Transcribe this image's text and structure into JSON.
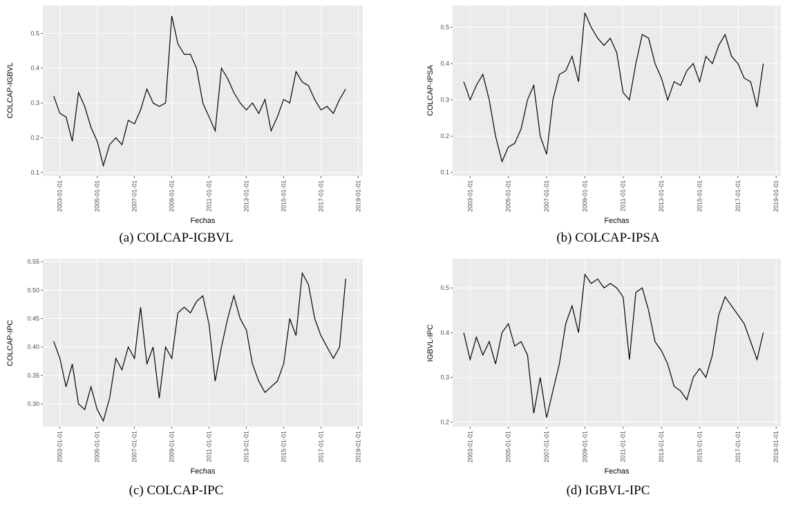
{
  "chart_data": [
    {
      "type": "line",
      "ylabel": "COLCAP-IGBVL",
      "xlabel": "Fechas",
      "caption": "(a) COLCAP-IGBVL",
      "color": "#000000",
      "grid": true,
      "x": [
        "2002-09-01",
        "2003-01-01",
        "2003-05-01",
        "2003-09-01",
        "2004-01-01",
        "2004-05-01",
        "2004-09-01",
        "2005-01-01",
        "2005-05-01",
        "2005-09-01",
        "2006-01-01",
        "2006-05-01",
        "2006-09-01",
        "2007-01-01",
        "2007-05-01",
        "2007-09-01",
        "2008-01-01",
        "2008-05-01",
        "2008-09-01",
        "2009-01-01",
        "2009-05-01",
        "2009-09-01",
        "2010-01-01",
        "2010-05-01",
        "2010-09-01",
        "2011-01-01",
        "2011-05-01",
        "2011-09-01",
        "2012-01-01",
        "2012-05-01",
        "2012-09-01",
        "2013-01-01",
        "2013-05-01",
        "2013-09-01",
        "2014-01-01",
        "2014-05-01",
        "2014-09-01",
        "2015-01-01",
        "2015-05-01",
        "2015-09-01",
        "2016-01-01",
        "2016-05-01",
        "2016-09-01",
        "2017-01-01",
        "2017-05-01",
        "2017-09-01",
        "2018-01-01",
        "2018-05-01"
      ],
      "values": [
        0.32,
        0.27,
        0.26,
        0.19,
        0.33,
        0.29,
        0.23,
        0.19,
        0.12,
        0.18,
        0.2,
        0.18,
        0.25,
        0.24,
        0.28,
        0.34,
        0.3,
        0.29,
        0.3,
        0.55,
        0.47,
        0.44,
        0.44,
        0.4,
        0.3,
        0.26,
        0.22,
        0.4,
        0.37,
        0.33,
        0.3,
        0.28,
        0.3,
        0.27,
        0.31,
        0.22,
        0.26,
        0.31,
        0.3,
        0.39,
        0.36,
        0.35,
        0.31,
        0.28,
        0.29,
        0.27,
        0.31,
        0.34
      ],
      "xlim": [
        "2002-02-01",
        "2019-04-01"
      ],
      "xticks": [
        "2003-01-01",
        "2005-01-01",
        "2007-01-01",
        "2009-01-01",
        "2011-01-01",
        "2013-01-01",
        "2015-01-01",
        "2017-01-01",
        "2019-01-01"
      ],
      "ylim": [
        0.09,
        0.58
      ],
      "yticks": [
        0.1,
        0.2,
        0.3,
        0.4,
        0.5
      ]
    },
    {
      "type": "line",
      "ylabel": "COLCAP-IPSA",
      "xlabel": "Fechas",
      "caption": "(b) COLCAP-IPSA",
      "color": "#000000",
      "grid": true,
      "x": [
        "2002-09-01",
        "2003-01-01",
        "2003-05-01",
        "2003-09-01",
        "2004-01-01",
        "2004-05-01",
        "2004-09-01",
        "2005-01-01",
        "2005-05-01",
        "2005-09-01",
        "2006-01-01",
        "2006-05-01",
        "2006-09-01",
        "2007-01-01",
        "2007-05-01",
        "2007-09-01",
        "2008-01-01",
        "2008-05-01",
        "2008-09-01",
        "2009-01-01",
        "2009-05-01",
        "2009-09-01",
        "2010-01-01",
        "2010-05-01",
        "2010-09-01",
        "2011-01-01",
        "2011-05-01",
        "2011-09-01",
        "2012-01-01",
        "2012-05-01",
        "2012-09-01",
        "2013-01-01",
        "2013-05-01",
        "2013-09-01",
        "2014-01-01",
        "2014-05-01",
        "2014-09-01",
        "2015-01-01",
        "2015-05-01",
        "2015-09-01",
        "2016-01-01",
        "2016-05-01",
        "2016-09-01",
        "2017-01-01",
        "2017-05-01",
        "2017-09-01",
        "2018-01-01",
        "2018-05-01"
      ],
      "values": [
        0.35,
        0.3,
        0.34,
        0.37,
        0.3,
        0.2,
        0.13,
        0.17,
        0.18,
        0.22,
        0.3,
        0.34,
        0.2,
        0.15,
        0.3,
        0.37,
        0.38,
        0.42,
        0.35,
        0.54,
        0.5,
        0.47,
        0.45,
        0.47,
        0.43,
        0.32,
        0.3,
        0.4,
        0.48,
        0.47,
        0.4,
        0.36,
        0.3,
        0.35,
        0.34,
        0.38,
        0.4,
        0.35,
        0.42,
        0.4,
        0.45,
        0.48,
        0.42,
        0.4,
        0.36,
        0.35,
        0.28,
        0.4
      ],
      "xlim": [
        "2002-02-01",
        "2019-04-01"
      ],
      "xticks": [
        "2003-01-01",
        "2005-01-01",
        "2007-01-01",
        "2009-01-01",
        "2011-01-01",
        "2013-01-01",
        "2015-01-01",
        "2017-01-01",
        "2019-01-01"
      ],
      "ylim": [
        0.09,
        0.56
      ],
      "yticks": [
        0.1,
        0.2,
        0.3,
        0.4,
        0.5
      ]
    },
    {
      "type": "line",
      "ylabel": "COLCAP-IPC",
      "xlabel": "Fechas",
      "caption": "(c) COLCAP-IPC",
      "color": "#000000",
      "grid": true,
      "x": [
        "2002-09-01",
        "2003-01-01",
        "2003-05-01",
        "2003-09-01",
        "2004-01-01",
        "2004-05-01",
        "2004-09-01",
        "2005-01-01",
        "2005-05-01",
        "2005-09-01",
        "2006-01-01",
        "2006-05-01",
        "2006-09-01",
        "2007-01-01",
        "2007-05-01",
        "2007-09-01",
        "2008-01-01",
        "2008-05-01",
        "2008-09-01",
        "2009-01-01",
        "2009-05-01",
        "2009-09-01",
        "2010-01-01",
        "2010-05-01",
        "2010-09-01",
        "2011-01-01",
        "2011-05-01",
        "2011-09-01",
        "2012-01-01",
        "2012-05-01",
        "2012-09-01",
        "2013-01-01",
        "2013-05-01",
        "2013-09-01",
        "2014-01-01",
        "2014-05-01",
        "2014-09-01",
        "2015-01-01",
        "2015-05-01",
        "2015-09-01",
        "2016-01-01",
        "2016-05-01",
        "2016-09-01",
        "2017-01-01",
        "2017-05-01",
        "2017-09-01",
        "2018-01-01",
        "2018-05-01"
      ],
      "values": [
        0.41,
        0.38,
        0.33,
        0.37,
        0.3,
        0.29,
        0.33,
        0.29,
        0.27,
        0.31,
        0.38,
        0.36,
        0.4,
        0.38,
        0.47,
        0.37,
        0.4,
        0.31,
        0.4,
        0.38,
        0.46,
        0.47,
        0.46,
        0.48,
        0.49,
        0.44,
        0.34,
        0.4,
        0.45,
        0.49,
        0.45,
        0.43,
        0.37,
        0.34,
        0.32,
        0.33,
        0.34,
        0.37,
        0.45,
        0.42,
        0.53,
        0.51,
        0.45,
        0.42,
        0.4,
        0.38,
        0.4,
        0.52
      ],
      "xlim": [
        "2002-02-01",
        "2019-04-01"
      ],
      "xticks": [
        "2003-01-01",
        "2005-01-01",
        "2007-01-01",
        "2009-01-01",
        "2011-01-01",
        "2013-01-01",
        "2015-01-01",
        "2017-01-01",
        "2019-01-01"
      ],
      "ylim": [
        0.26,
        0.555
      ],
      "yticks": [
        {
          "value": 0.3,
          "label": "0.30"
        },
        0.35,
        {
          "value": 0.4,
          "label": "0.40"
        },
        0.45,
        {
          "value": 0.5,
          "label": "0.50"
        },
        0.55
      ]
    },
    {
      "type": "line",
      "ylabel": "IGBVL-IPC",
      "xlabel": "Fechas",
      "caption": "(d) IGBVL-IPC",
      "color": "#000000",
      "grid": true,
      "x": [
        "2002-09-01",
        "2003-01-01",
        "2003-05-01",
        "2003-09-01",
        "2004-01-01",
        "2004-05-01",
        "2004-09-01",
        "2005-01-01",
        "2005-05-01",
        "2005-09-01",
        "2006-01-01",
        "2006-05-01",
        "2006-09-01",
        "2007-01-01",
        "2007-05-01",
        "2007-09-01",
        "2008-01-01",
        "2008-05-01",
        "2008-09-01",
        "2009-01-01",
        "2009-05-01",
        "2009-09-01",
        "2010-01-01",
        "2010-05-01",
        "2010-09-01",
        "2011-01-01",
        "2011-05-01",
        "2011-09-01",
        "2012-01-01",
        "2012-05-01",
        "2012-09-01",
        "2013-01-01",
        "2013-05-01",
        "2013-09-01",
        "2014-01-01",
        "2014-05-01",
        "2014-09-01",
        "2015-01-01",
        "2015-05-01",
        "2015-09-01",
        "2016-01-01",
        "2016-05-01",
        "2016-09-01",
        "2017-01-01",
        "2017-05-01",
        "2017-09-01",
        "2018-01-01",
        "2018-05-01"
      ],
      "values": [
        0.4,
        0.34,
        0.39,
        0.35,
        0.38,
        0.33,
        0.4,
        0.42,
        0.37,
        0.38,
        0.35,
        0.22,
        0.3,
        0.21,
        0.27,
        0.33,
        0.42,
        0.46,
        0.4,
        0.53,
        0.51,
        0.52,
        0.5,
        0.51,
        0.5,
        0.48,
        0.34,
        0.49,
        0.5,
        0.45,
        0.38,
        0.36,
        0.33,
        0.28,
        0.27,
        0.25,
        0.3,
        0.32,
        0.3,
        0.35,
        0.44,
        0.48,
        0.46,
        0.44,
        0.42,
        0.38,
        0.34,
        0.4
      ],
      "xlim": [
        "2002-02-01",
        "2019-04-01"
      ],
      "xticks": [
        "2003-01-01",
        "2005-01-01",
        "2007-01-01",
        "2009-01-01",
        "2011-01-01",
        "2013-01-01",
        "2015-01-01",
        "2017-01-01",
        "2019-01-01"
      ],
      "ylim": [
        0.19,
        0.565
      ],
      "yticks": [
        0.2,
        0.3,
        0.4,
        0.5
      ]
    }
  ]
}
